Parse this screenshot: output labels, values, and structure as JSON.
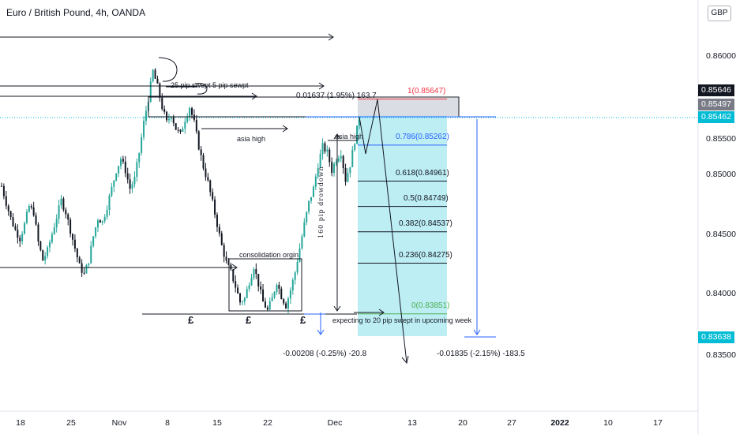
{
  "header": {
    "title": "Euro / British Pound, 4h, OANDA",
    "currency_button": "GBP"
  },
  "price_axis": {
    "ticks": [
      "0.86000",
      "0.85500",
      "0.85000",
      "0.84500",
      "0.84000",
      "0.83500"
    ],
    "badges": [
      {
        "label": "0.85646",
        "color": "#131722"
      },
      {
        "label": "0.85497",
        "color": "#787b86"
      },
      {
        "label": "0.85462",
        "color": "#00bcd4"
      },
      {
        "label": "0.83638",
        "color": "#00bcd4"
      }
    ]
  },
  "time_axis": {
    "ticks": [
      "18",
      "25",
      "Nov",
      "8",
      "15",
      "22",
      "Dec",
      "13",
      "20",
      "27",
      "2022",
      "10",
      "17"
    ]
  },
  "annotations": {
    "sweep": "25 pip swept  5 pip sewpt",
    "asia_high_1": "asia high",
    "asia_high_2": "asia high",
    "consolidation": "consolidation orgin",
    "drawdown": "160 pip drowdown",
    "expecting": "expecting to 20 pip swept in upcoming week",
    "pound_symbol": "£"
  },
  "fib_levels": [
    {
      "label": "1(0.85647)",
      "color": "#f23645"
    },
    {
      "label": "0.786(0.85262)",
      "color": "#2962ff"
    },
    {
      "label": "0.618(0.84961)",
      "color": "#131722"
    },
    {
      "label": "0.5(0.84749)",
      "color": "#131722"
    },
    {
      "label": "0.382(0.84537)",
      "color": "#131722"
    },
    {
      "label": "0.236(0.84275)",
      "color": "#131722"
    },
    {
      "label": "0(0.83851)",
      "color": "#4caf50"
    }
  ],
  "measurements": {
    "top": "0.01637 (1.95%) 163.7",
    "bottom_left": "-0.00208 (-0.25%) -20.8",
    "bottom_right": "-0.01835 (-2.15%) -183.5"
  },
  "chart_data": {
    "type": "candlestick",
    "title": "Euro / British Pound, 4h, OANDA",
    "ylim": [
      0.8305,
      0.8635
    ],
    "x_ticks": [
      "18",
      "25",
      "Nov",
      "8",
      "15",
      "22",
      "Dec",
      "13",
      "20",
      "27",
      "2022",
      "10",
      "17"
    ],
    "y_ticks": [
      0.86,
      0.855,
      0.85,
      0.845,
      0.84,
      0.835
    ],
    "close_path": [
      0.8492,
      0.8478,
      0.8465,
      0.8455,
      0.8448,
      0.846,
      0.8475,
      0.847,
      0.8445,
      0.843,
      0.8438,
      0.8452,
      0.8466,
      0.848,
      0.847,
      0.8455,
      0.844,
      0.8425,
      0.8418,
      0.843,
      0.845,
      0.8465,
      0.8462,
      0.8475,
      0.849,
      0.8505,
      0.8515,
      0.8505,
      0.849,
      0.8498,
      0.852,
      0.8545,
      0.8565,
      0.8588,
      0.8575,
      0.8558,
      0.8545,
      0.8552,
      0.854,
      0.8535,
      0.8548,
      0.8558,
      0.8545,
      0.8525,
      0.8508,
      0.8495,
      0.8478,
      0.846,
      0.8442,
      0.8428,
      0.842,
      0.8408,
      0.8395,
      0.8398,
      0.8412,
      0.8425,
      0.841,
      0.8395,
      0.8388,
      0.8398,
      0.8412,
      0.84,
      0.8392,
      0.8405,
      0.842,
      0.844,
      0.846,
      0.8478,
      0.849,
      0.851,
      0.8525,
      0.852,
      0.8505,
      0.8515,
      0.852,
      0.8497,
      0.851,
      0.853,
      0.8549
    ],
    "fibonacci": [
      {
        "ratio": 1,
        "price": 0.85647
      },
      {
        "ratio": 0.786,
        "price": 0.85262
      },
      {
        "ratio": 0.618,
        "price": 0.84961
      },
      {
        "ratio": 0.5,
        "price": 0.84749
      },
      {
        "ratio": 0.382,
        "price": 0.84537
      },
      {
        "ratio": 0.236,
        "price": 0.84275
      },
      {
        "ratio": 0,
        "price": 0.83851
      }
    ],
    "current_price": 0.85462,
    "target_price": 0.83638
  }
}
